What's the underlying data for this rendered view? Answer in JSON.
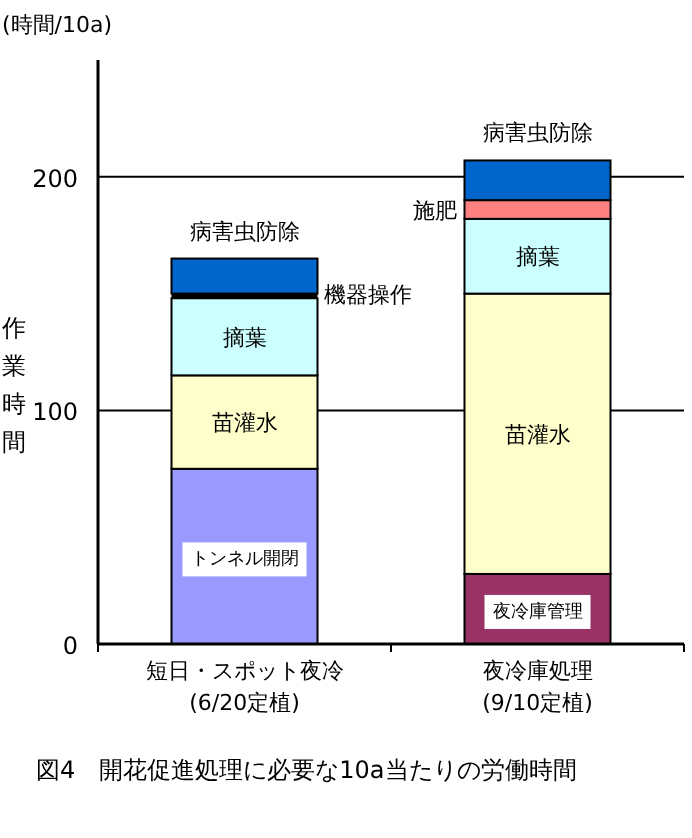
{
  "chart_data": {
    "type": "bar",
    "stacked": true,
    "title": "図4　開花促進処理に必要な10a当たりの労働時間",
    "ylabel": "作業時間",
    "annotations": [
      "(時間/10a)"
    ],
    "categories": [
      "短日・スポット夜冷\n(6/20定植)",
      "夜冷庫処理\n(9/10定植)"
    ],
    "ylim": [
      0,
      250
    ],
    "yticks": [
      0,
      100,
      200
    ],
    "grid": "y",
    "series": [
      {
        "name": "トンネル開閉",
        "color": "#9999ff",
        "values": [
          75,
          null
        ]
      },
      {
        "name": "夜冷庫管理",
        "color": "#993366",
        "values": [
          null,
          30
        ]
      },
      {
        "name": "苗灌水",
        "color": "#ffffcc",
        "values": [
          40,
          120
        ]
      },
      {
        "name": "摘葉",
        "color": "#ccffff",
        "values": [
          33,
          32
        ]
      },
      {
        "name": "機器操作",
        "color": "#000000",
        "values": [
          2,
          null
        ]
      },
      {
        "name": "施肥",
        "color": "#ff8080",
        "values": [
          null,
          8
        ]
      },
      {
        "name": "病害虫防除",
        "color": "#0066cc",
        "values": [
          15,
          17
        ]
      }
    ]
  }
}
